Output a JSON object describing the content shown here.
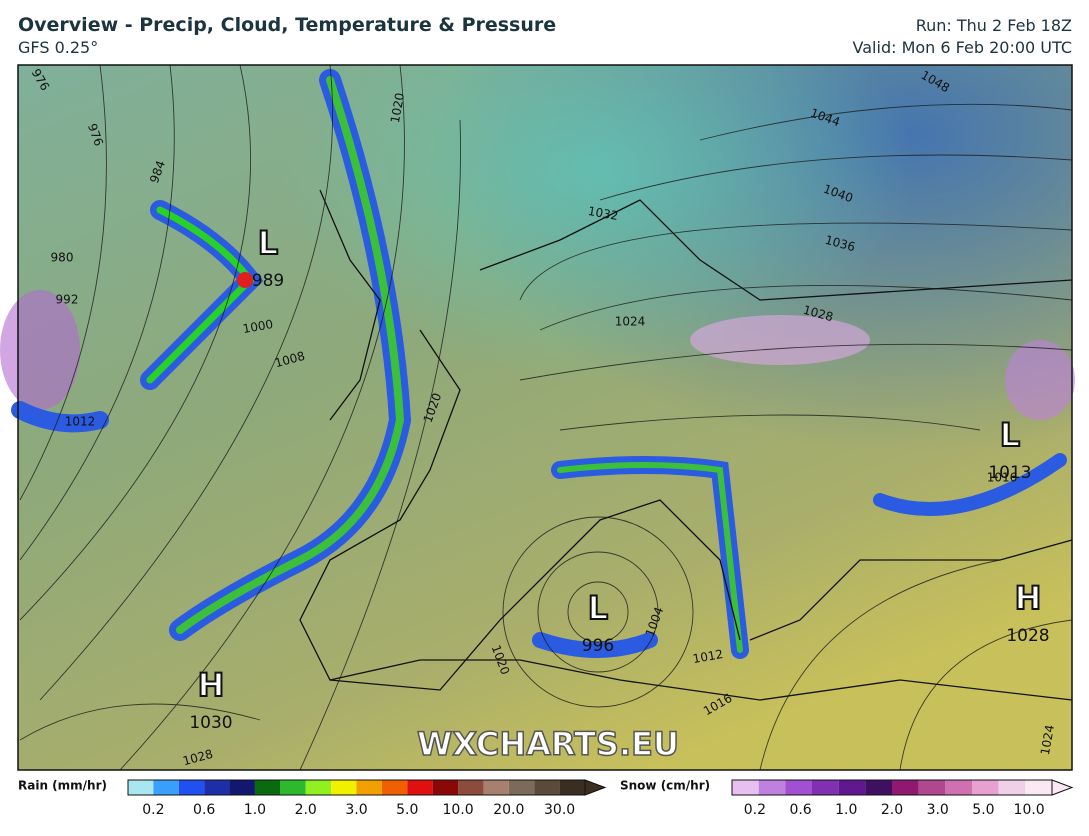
{
  "header": {
    "title": "Overview - Precip, Cloud, Temperature & Pressure",
    "model": "GFS 0.25°",
    "run": "Run: Thu 2 Feb 18Z",
    "valid": "Valid: Mon 6 Feb 20:00 UTC"
  },
  "map": {
    "pressure_systems": [
      {
        "symbol": "L",
        "value": "989"
      },
      {
        "symbol": "L",
        "value": "996"
      },
      {
        "symbol": "L",
        "value": "1013"
      },
      {
        "symbol": "H",
        "value": "1028"
      },
      {
        "symbol": "H",
        "value": "1030"
      }
    ],
    "isobar_labels": [
      "976",
      "984",
      "976",
      "992",
      "980",
      "1000",
      "1008",
      "1012",
      "1020",
      "1024",
      "1028",
      "1032",
      "1036",
      "1040",
      "1044",
      "1048",
      "1016",
      "1004",
      "1012",
      "1016",
      "1020",
      "1024",
      "1028",
      "1020"
    ],
    "watermark": "WXCHARTS.EU"
  },
  "legend": {
    "rain": {
      "label": "Rain (mm/hr)",
      "ticks": [
        "0.2",
        "0.6",
        "1.0",
        "2.0",
        "3.0",
        "5.0",
        "10.0",
        "20.0",
        "30.0"
      ]
    },
    "snow": {
      "label": "Snow (cm/hr)",
      "ticks": [
        "0.2",
        "0.6",
        "1.0",
        "2.0",
        "3.0",
        "5.0",
        "10.0"
      ]
    }
  }
}
